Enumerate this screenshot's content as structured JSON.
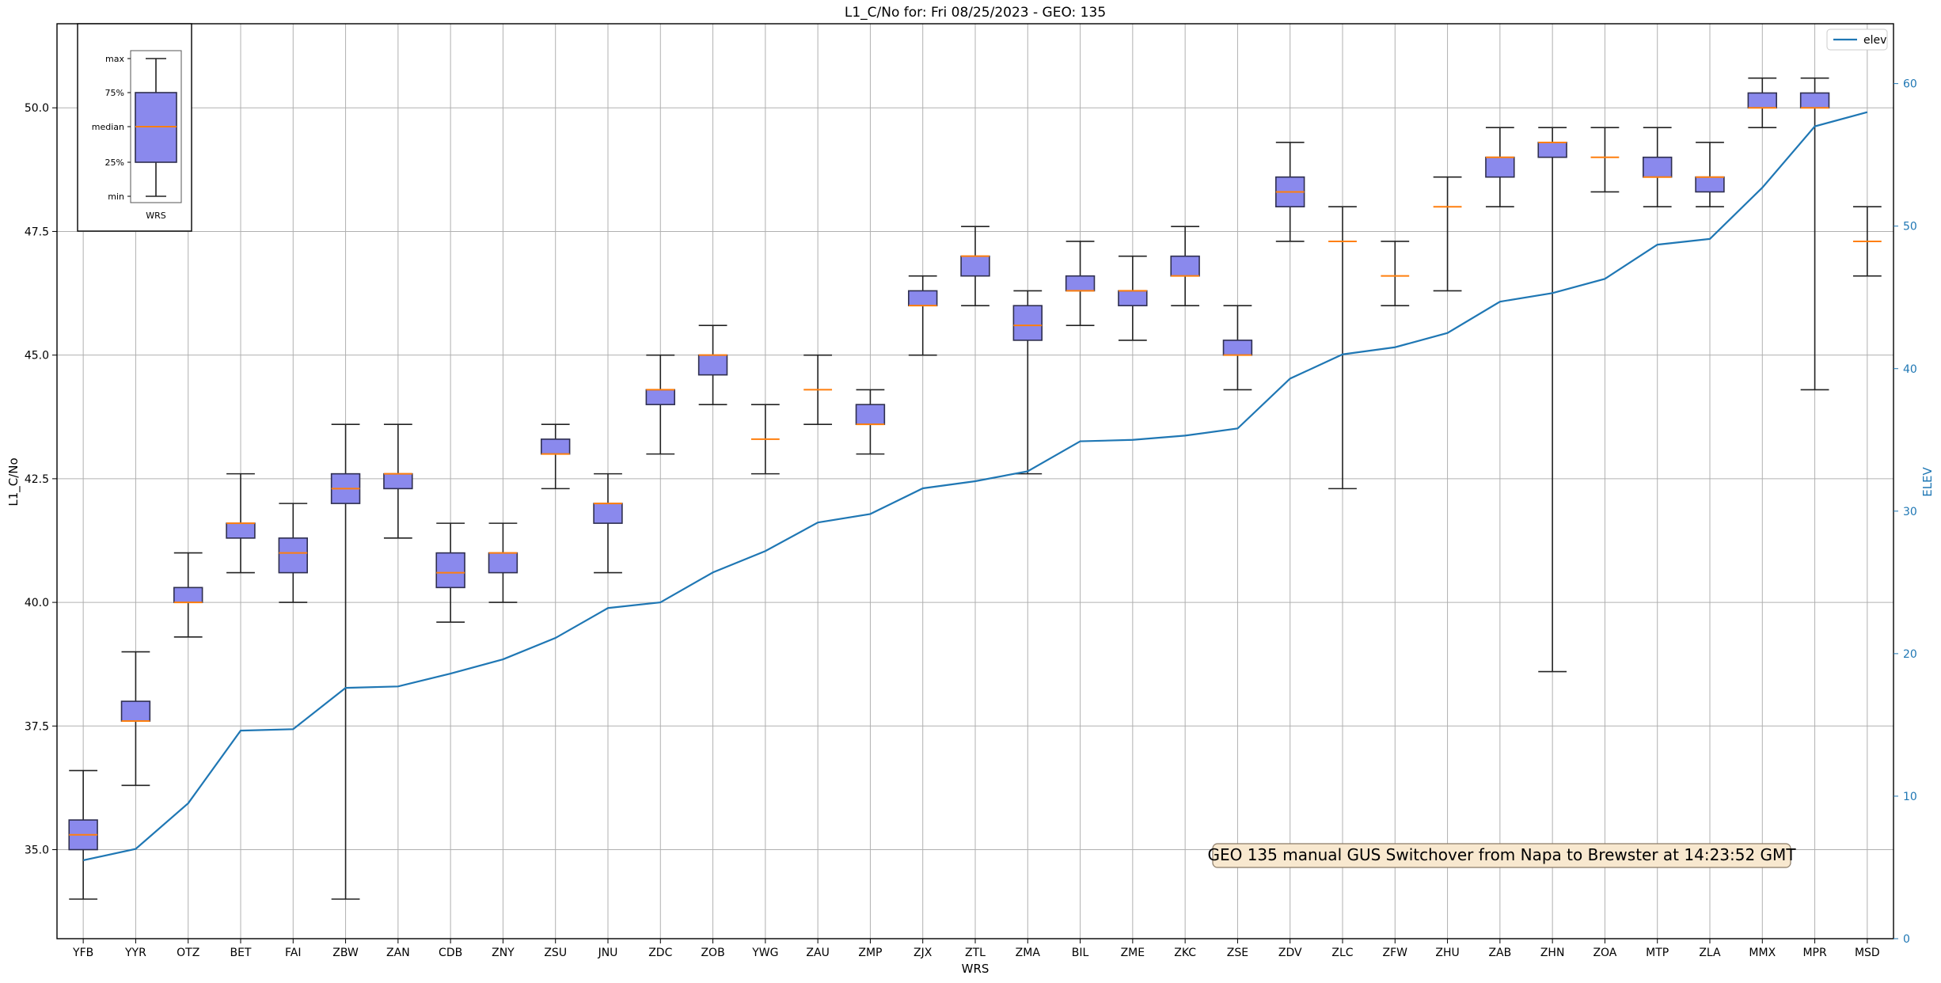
{
  "chart_data": {
    "type": "box",
    "title": "L1_C/No for: Fri 08/25/2023 - GEO: 135",
    "xlabel": "WRS",
    "ylabel": "L1_C/No",
    "y2label": "ELEV",
    "ylim": [
      33.2,
      51.7
    ],
    "y2lim": [
      0,
      64.2
    ],
    "yticks": [
      "35.0",
      "37.5",
      "40.0",
      "42.5",
      "45.0",
      "47.5",
      "50.0"
    ],
    "y2ticks": [
      "0",
      "10",
      "20",
      "30",
      "40",
      "50",
      "60"
    ],
    "grid": true,
    "legend": {
      "position": "top-right",
      "entries": [
        "elev"
      ]
    },
    "annotation": "GEO 135 manual GUS Switchover from Napa to Brewster at 14:23:52 GMT",
    "colors": {
      "box_fill": "#8a89ed",
      "box_edge": "#2f2f4f",
      "median": "#ff7f0e",
      "whisker": "#222222",
      "line": "#1f77b4",
      "grid": "#b0b0b0",
      "annotation_bg": "#f8e8cf"
    },
    "categories": [
      "YFB",
      "YYR",
      "OTZ",
      "BET",
      "FAI",
      "ZBW",
      "ZAN",
      "CDB",
      "ZNY",
      "ZSU",
      "JNU",
      "ZDC",
      "ZOB",
      "YWG",
      "ZAU",
      "ZMP",
      "ZJX",
      "ZTL",
      "ZMA",
      "BIL",
      "ZME",
      "ZKC",
      "ZSE",
      "ZDV",
      "ZLC",
      "ZFW",
      "ZHU",
      "ZAB",
      "ZHN",
      "ZOA",
      "MTP",
      "ZLA",
      "MMX",
      "MPR",
      "MSD"
    ],
    "boxes": [
      {
        "min": 34.0,
        "q1": 35.0,
        "median": 35.3,
        "q3": 35.6,
        "max": 36.6
      },
      {
        "min": 36.3,
        "q1": 37.6,
        "median": 37.6,
        "q3": 38.0,
        "max": 39.0
      },
      {
        "min": 39.3,
        "q1": 40.0,
        "median": 40.0,
        "q3": 40.3,
        "max": 41.0
      },
      {
        "min": 40.6,
        "q1": 41.3,
        "median": 41.6,
        "q3": 41.6,
        "max": 42.6
      },
      {
        "min": 40.0,
        "q1": 40.6,
        "median": 41.0,
        "q3": 41.3,
        "max": 42.0
      },
      {
        "min": 34.0,
        "q1": 42.0,
        "median": 42.3,
        "q3": 42.6,
        "max": 43.6
      },
      {
        "min": 41.3,
        "q1": 42.3,
        "median": 42.6,
        "q3": 42.6,
        "max": 43.6
      },
      {
        "min": 39.6,
        "q1": 40.3,
        "median": 40.6,
        "q3": 41.0,
        "max": 41.6
      },
      {
        "min": 40.0,
        "q1": 40.6,
        "median": 41.0,
        "q3": 41.0,
        "max": 41.6
      },
      {
        "min": 42.3,
        "q1": 43.0,
        "median": 43.0,
        "q3": 43.3,
        "max": 43.6
      },
      {
        "min": 40.6,
        "q1": 41.6,
        "median": 42.0,
        "q3": 42.0,
        "max": 42.6
      },
      {
        "min": 43.0,
        "q1": 44.0,
        "median": 44.3,
        "q3": 44.3,
        "max": 45.0
      },
      {
        "min": 44.0,
        "q1": 44.6,
        "median": 45.0,
        "q3": 45.0,
        "max": 45.6
      },
      {
        "min": 42.6,
        "q1": 43.3,
        "median": 43.3,
        "q3": 43.3,
        "max": 44.0
      },
      {
        "min": 43.6,
        "q1": 44.3,
        "median": 44.3,
        "q3": 44.3,
        "max": 45.0
      },
      {
        "min": 43.0,
        "q1": 43.6,
        "median": 43.6,
        "q3": 44.0,
        "max": 44.3
      },
      {
        "min": 45.0,
        "q1": 46.0,
        "median": 46.0,
        "q3": 46.3,
        "max": 46.6
      },
      {
        "min": 46.0,
        "q1": 46.6,
        "median": 47.0,
        "q3": 47.0,
        "max": 47.6
      },
      {
        "min": 42.6,
        "q1": 45.3,
        "median": 45.6,
        "q3": 46.0,
        "max": 46.3
      },
      {
        "min": 45.6,
        "q1": 46.3,
        "median": 46.3,
        "q3": 46.6,
        "max": 47.3
      },
      {
        "min": 45.3,
        "q1": 46.0,
        "median": 46.3,
        "q3": 46.3,
        "max": 47.0
      },
      {
        "min": 46.0,
        "q1": 46.6,
        "median": 46.6,
        "q3": 47.0,
        "max": 47.6
      },
      {
        "min": 44.3,
        "q1": 45.0,
        "median": 45.0,
        "q3": 45.3,
        "max": 46.0
      },
      {
        "min": 47.3,
        "q1": 48.0,
        "median": 48.3,
        "q3": 48.6,
        "max": 49.3
      },
      {
        "min": 42.3,
        "q1": 47.3,
        "median": 47.3,
        "q3": 47.3,
        "max": 48.0
      },
      {
        "min": 46.0,
        "q1": 46.6,
        "median": 46.6,
        "q3": 46.6,
        "max": 47.3
      },
      {
        "min": 46.3,
        "q1": 48.0,
        "median": 48.0,
        "q3": 48.0,
        "max": 48.6
      },
      {
        "min": 48.0,
        "q1": 48.6,
        "median": 49.0,
        "q3": 49.0,
        "max": 49.6
      },
      {
        "min": 38.6,
        "q1": 49.0,
        "median": 49.3,
        "q3": 49.3,
        "max": 49.6
      },
      {
        "min": 48.3,
        "q1": 49.0,
        "median": 49.0,
        "q3": 49.0,
        "max": 49.6
      },
      {
        "min": 48.0,
        "q1": 48.6,
        "median": 48.6,
        "q3": 49.0,
        "max": 49.6
      },
      {
        "min": 48.0,
        "q1": 48.3,
        "median": 48.6,
        "q3": 48.6,
        "max": 49.3
      },
      {
        "min": 49.6,
        "q1": 50.0,
        "median": 50.0,
        "q3": 50.3,
        "max": 50.6
      },
      {
        "min": 44.3,
        "q1": 50.0,
        "median": 50.0,
        "q3": 50.3,
        "max": 50.6
      },
      {
        "min": 46.6,
        "q1": 47.3,
        "median": 47.3,
        "q3": 47.3,
        "max": 48.0
      }
    ],
    "elev_series": {
      "name": "elev",
      "values": [
        5.5,
        6.3,
        9.5,
        14.6,
        14.7,
        17.6,
        17.7,
        18.6,
        19.6,
        21.1,
        23.2,
        23.6,
        25.7,
        27.2,
        29.2,
        29.8,
        31.6,
        32.1,
        32.8,
        34.9,
        35.0,
        35.3,
        35.8,
        39.3,
        41.0,
        41.5,
        42.5,
        44.7,
        45.3,
        46.3,
        48.7,
        49.1,
        52.7,
        57.0,
        58.0
      ]
    },
    "legend_inset": {
      "labels": [
        "max",
        "75%",
        "median",
        "25%",
        "min"
      ],
      "xlabel": "WRS"
    }
  }
}
